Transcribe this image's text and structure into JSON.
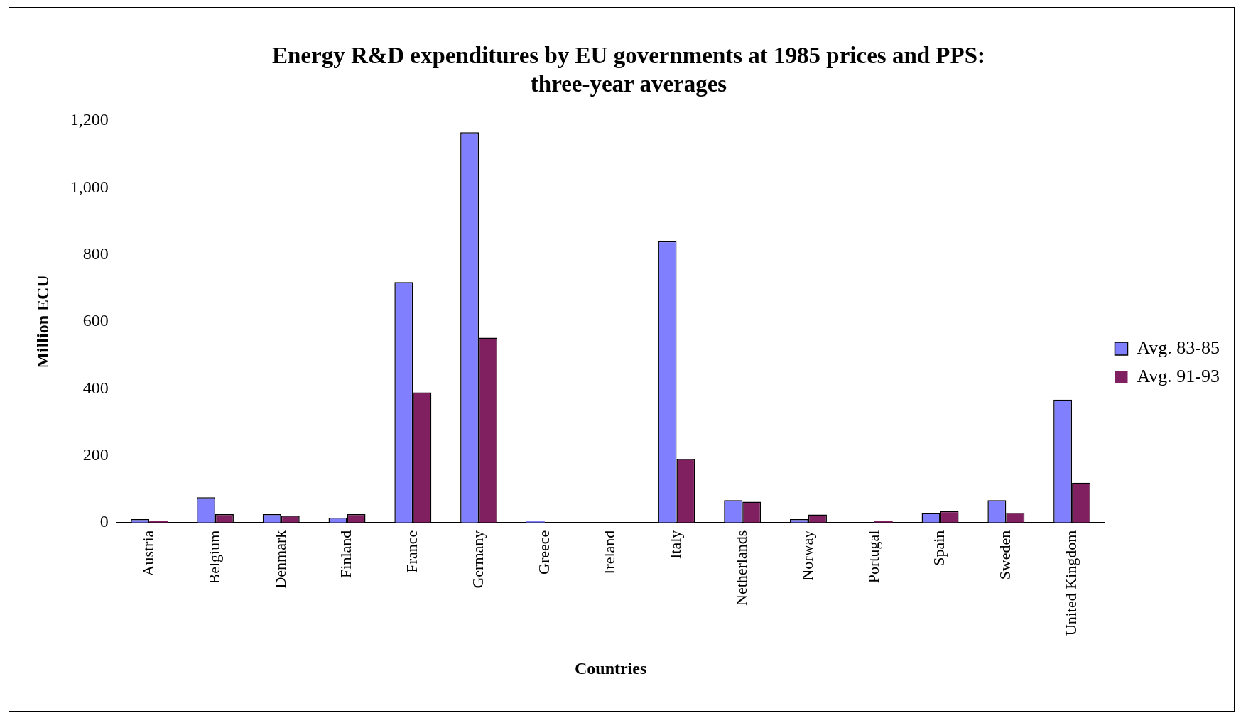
{
  "chart_data": {
    "type": "bar",
    "title": [
      "Energy R&D expenditures by EU governments at 1985 prices and PPS:",
      "three-year averages"
    ],
    "xlabel": "Countries",
    "ylabel": "Million ECU",
    "categories": [
      "Austria",
      "Belgium",
      "Denmark",
      "Finland",
      "France",
      "Germany",
      "Greece",
      "Ireland",
      "Italy",
      "Netherlands",
      "Norway",
      "Portugal",
      "Spain",
      "Sweden",
      "United Kingdom"
    ],
    "series": [
      {
        "name": "Avg. 83-85",
        "color": "#8080ff",
        "values": [
          10,
          75,
          25,
          14,
          718,
          1166,
          4,
          0,
          840,
          67,
          10,
          0,
          28,
          67,
          367
        ]
      },
      {
        "name": "Avg. 91-93",
        "color": "#802060",
        "values": [
          4,
          25,
          20,
          25,
          389,
          552,
          0,
          0,
          190,
          62,
          24,
          4,
          34,
          29,
          119
        ]
      }
    ],
    "ylim": [
      0,
      1200
    ],
    "yticks": [
      {
        "value": 0,
        "label": "0"
      },
      {
        "value": 200,
        "label": "200"
      },
      {
        "value": 400,
        "label": "400"
      },
      {
        "value": 600,
        "label": "600"
      },
      {
        "value": 800,
        "label": "800"
      },
      {
        "value": 1000,
        "label": "1,000"
      },
      {
        "value": 1200,
        "label": "1,200"
      }
    ],
    "grid": false,
    "legend": "right"
  }
}
